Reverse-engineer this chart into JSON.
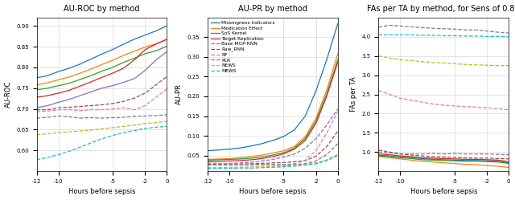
{
  "title1": "AU-ROC by method",
  "title2": "AU-PR by method",
  "title3": "FAs per TA by method, for Sens of 0.80",
  "xlabel": "Hours before sepsis",
  "ylabel1": "AU-ROC",
  "ylabel2": "AU-PR",
  "ylabel3": "FAs per TA",
  "legend_labels": [
    "Missingness Indicators",
    "Medication Effect",
    "SoS Kernel",
    "Target Replication",
    "Base MGP-RNN",
    "Raw_RNN",
    "RF",
    "PLR",
    "NEWS",
    "MEWS"
  ],
  "colors": [
    "#1f77b4",
    "#ff7f0e",
    "#2ca02c",
    "#d62728",
    "#9467bd",
    "#8c564b",
    "#e377c2",
    "#7f7f7f",
    "#bcbd22",
    "#17becf"
  ],
  "linestyles": [
    "-",
    "-",
    "-",
    "-",
    "--",
    "--",
    "--",
    "--",
    "--",
    "--"
  ],
  "x_ticks": [
    -12,
    -10,
    -5,
    -2,
    0
  ],
  "x_ticklabels": [
    "-12",
    "-10",
    "-5",
    "-2",
    "0"
  ],
  "roc_x": [
    -12,
    -11,
    -10,
    -9,
    -8,
    -7,
    -6,
    -5,
    -4,
    -3,
    -2,
    -1,
    0
  ],
  "roc_missingness": [
    0.775,
    0.78,
    0.79,
    0.798,
    0.808,
    0.82,
    0.832,
    0.843,
    0.856,
    0.868,
    0.878,
    0.888,
    0.9
  ],
  "roc_medication": [
    0.758,
    0.763,
    0.77,
    0.777,
    0.786,
    0.796,
    0.807,
    0.817,
    0.829,
    0.839,
    0.849,
    0.857,
    0.867
  ],
  "roc_sos": [
    0.746,
    0.75,
    0.756,
    0.762,
    0.771,
    0.78,
    0.791,
    0.8,
    0.812,
    0.822,
    0.833,
    0.84,
    0.851
  ],
  "roc_target": [
    0.728,
    0.732,
    0.738,
    0.745,
    0.755,
    0.765,
    0.776,
    0.786,
    0.798,
    0.818,
    0.843,
    0.856,
    0.868
  ],
  "roc_base_mgp": [
    0.703,
    0.708,
    0.716,
    0.723,
    0.732,
    0.741,
    0.75,
    0.756,
    0.764,
    0.773,
    0.793,
    0.818,
    0.838
  ],
  "roc_raw_rnn": [
    0.698,
    0.698,
    0.703,
    0.704,
    0.706,
    0.708,
    0.71,
    0.713,
    0.718,
    0.726,
    0.738,
    0.758,
    0.778
  ],
  "roc_rf": [
    0.693,
    0.695,
    0.698,
    0.698,
    0.696,
    0.698,
    0.698,
    0.7,
    0.703,
    0.698,
    0.708,
    0.728,
    0.748
  ],
  "roc_plr": [
    0.678,
    0.68,
    0.683,
    0.681,
    0.678,
    0.679,
    0.678,
    0.679,
    0.68,
    0.682,
    0.683,
    0.684,
    0.686
  ],
  "roc_news": [
    0.638,
    0.64,
    0.643,
    0.645,
    0.647,
    0.649,
    0.652,
    0.655,
    0.658,
    0.661,
    0.665,
    0.667,
    0.67
  ],
  "roc_mews": [
    0.578,
    0.583,
    0.59,
    0.598,
    0.608,
    0.618,
    0.628,
    0.636,
    0.643,
    0.648,
    0.653,
    0.656,
    0.658
  ],
  "pr_x": [
    -12,
    -11,
    -10,
    -9,
    -8,
    -7,
    -6,
    -5,
    -4,
    -3,
    -2,
    -1,
    0
  ],
  "pr_missingness": [
    0.062,
    0.064,
    0.066,
    0.069,
    0.074,
    0.08,
    0.088,
    0.098,
    0.115,
    0.15,
    0.215,
    0.295,
    0.385
  ],
  "pr_medication": [
    0.04,
    0.041,
    0.042,
    0.044,
    0.047,
    0.051,
    0.056,
    0.062,
    0.073,
    0.098,
    0.145,
    0.218,
    0.308
  ],
  "pr_sos": [
    0.038,
    0.039,
    0.04,
    0.041,
    0.043,
    0.046,
    0.051,
    0.057,
    0.069,
    0.093,
    0.138,
    0.208,
    0.293
  ],
  "pr_target": [
    0.034,
    0.035,
    0.036,
    0.037,
    0.039,
    0.042,
    0.047,
    0.054,
    0.066,
    0.088,
    0.132,
    0.202,
    0.287
  ],
  "pr_base_mgp": [
    0.028,
    0.029,
    0.03,
    0.031,
    0.033,
    0.036,
    0.04,
    0.046,
    0.054,
    0.068,
    0.093,
    0.128,
    0.168
  ],
  "pr_raw_rnn": [
    0.027,
    0.027,
    0.028,
    0.028,
    0.029,
    0.03,
    0.031,
    0.032,
    0.034,
    0.037,
    0.048,
    0.073,
    0.112
  ],
  "pr_rf": [
    0.031,
    0.03,
    0.029,
    0.028,
    0.027,
    0.027,
    0.027,
    0.027,
    0.029,
    0.038,
    0.063,
    0.108,
    0.162
  ],
  "pr_plr": [
    0.026,
    0.026,
    0.026,
    0.026,
    0.026,
    0.026,
    0.026,
    0.026,
    0.027,
    0.029,
    0.036,
    0.053,
    0.08
  ],
  "pr_news": [
    0.019,
    0.019,
    0.02,
    0.02,
    0.021,
    0.021,
    0.022,
    0.023,
    0.024,
    0.027,
    0.031,
    0.039,
    0.053
  ],
  "pr_mews": [
    0.017,
    0.017,
    0.017,
    0.018,
    0.018,
    0.019,
    0.02,
    0.021,
    0.023,
    0.026,
    0.029,
    0.037,
    0.05
  ],
  "fa_x": [
    -12,
    -11,
    -10,
    -9,
    -8,
    -7,
    -6,
    -5,
    -4,
    -3,
    -2,
    -1,
    0
  ],
  "fa_missingness": [
    0.92,
    0.9,
    0.87,
    0.85,
    0.83,
    0.81,
    0.8,
    0.79,
    0.78,
    0.78,
    0.77,
    0.76,
    0.72
  ],
  "fa_medication": [
    0.88,
    0.85,
    0.82,
    0.79,
    0.76,
    0.74,
    0.72,
    0.7,
    0.68,
    0.67,
    0.65,
    0.63,
    0.6
  ],
  "fa_sos": [
    0.9,
    0.88,
    0.85,
    0.83,
    0.8,
    0.79,
    0.78,
    0.77,
    0.76,
    0.76,
    0.75,
    0.74,
    0.7
  ],
  "fa_target": [
    0.95,
    0.93,
    0.9,
    0.88,
    0.85,
    0.84,
    0.83,
    0.82,
    0.81,
    0.81,
    0.8,
    0.79,
    0.75
  ],
  "fa_base_mgp": [
    1.0,
    0.98,
    0.95,
    0.95,
    0.95,
    0.96,
    0.95,
    0.96,
    0.95,
    0.95,
    0.95,
    0.94,
    0.93
  ],
  "fa_raw_rnn": [
    1.05,
    1.0,
    0.95,
    0.92,
    0.9,
    0.88,
    0.87,
    0.86,
    0.85,
    0.84,
    0.84,
    0.83,
    0.82
  ],
  "fa_rf": [
    2.6,
    2.5,
    2.4,
    2.35,
    2.3,
    2.25,
    2.22,
    2.2,
    2.18,
    2.17,
    2.15,
    2.13,
    2.1
  ],
  "fa_plr": [
    4.25,
    4.3,
    4.28,
    4.26,
    4.24,
    4.22,
    4.21,
    4.2,
    4.18,
    4.18,
    4.15,
    4.12,
    4.1
  ],
  "fa_news": [
    3.5,
    3.45,
    3.4,
    3.38,
    3.35,
    3.33,
    3.32,
    3.3,
    3.28,
    3.27,
    3.26,
    3.25,
    3.25
  ],
  "fa_mews": [
    4.05,
    4.05,
    4.05,
    4.05,
    4.04,
    4.04,
    4.03,
    4.03,
    4.02,
    4.02,
    4.01,
    4.01,
    4.0
  ],
  "roc_ylim": [
    0.55,
    0.92
  ],
  "roc_yticks": [
    0.6,
    0.65,
    0.7,
    0.75,
    0.8,
    0.85,
    0.9
  ],
  "pr_ylim": [
    0.01,
    0.4
  ],
  "pr_yticks": [
    0.05,
    0.1,
    0.15,
    0.2,
    0.25,
    0.3,
    0.35
  ],
  "fa_ylim": [
    0.5,
    4.5
  ],
  "fa_yticks": [
    1.0,
    1.5,
    2.0,
    2.5,
    3.0,
    3.5,
    4.0
  ]
}
